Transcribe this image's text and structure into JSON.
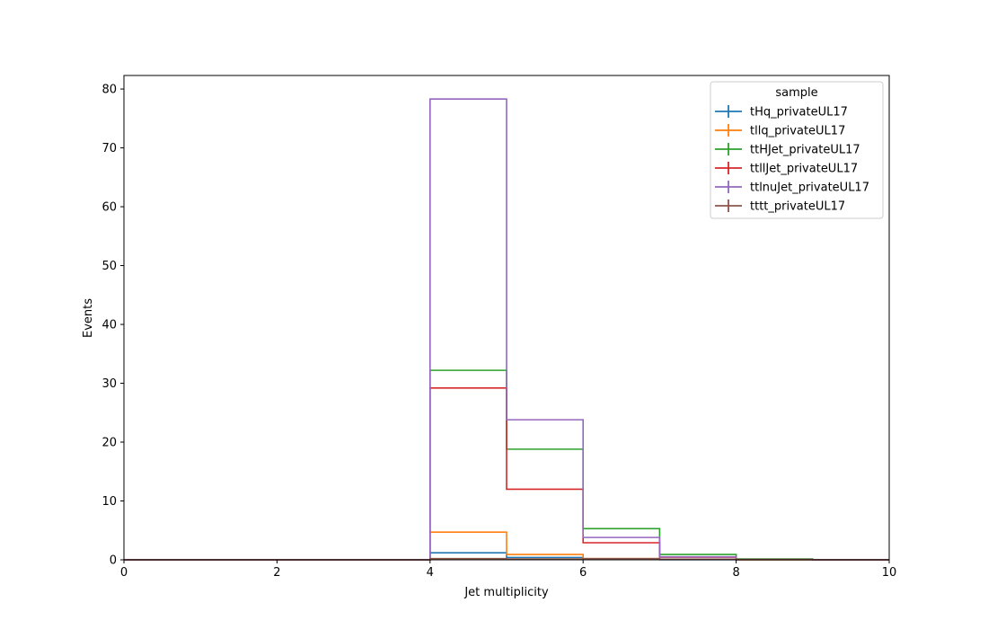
{
  "chart_data": {
    "type": "step-histogram",
    "xlabel": "Jet multiplicity",
    "ylabel": "Events",
    "xlim": [
      0,
      10
    ],
    "ylim": [
      0,
      82.3
    ],
    "xticks": [
      "0",
      "2",
      "4",
      "6",
      "8",
      "10"
    ],
    "yticks": [
      "0",
      "10",
      "20",
      "30",
      "40",
      "50",
      "60",
      "70",
      "80"
    ],
    "grid": false,
    "legend": {
      "title": "sample",
      "placement": "upper right"
    },
    "bin_edges": [
      0,
      1,
      2,
      3,
      4,
      5,
      6,
      7,
      8,
      9,
      10
    ],
    "series": [
      {
        "name": "tHq_privateUL17",
        "color": "#1f77b4",
        "values": [
          0,
          0,
          0,
          0,
          1.2,
          0.4,
          0.1,
          0.02,
          0,
          0
        ]
      },
      {
        "name": "tllq_privateUL17",
        "color": "#ff7f0e",
        "values": [
          0,
          0,
          0,
          0,
          4.7,
          0.9,
          0.2,
          0.05,
          0,
          0
        ]
      },
      {
        "name": "ttHJet_privateUL17",
        "color": "#2ca02c",
        "values": [
          0,
          0,
          0,
          0,
          32.2,
          18.8,
          5.3,
          0.9,
          0.15,
          0
        ]
      },
      {
        "name": "ttllJet_privateUL17",
        "color": "#d62728",
        "values": [
          0,
          0,
          0,
          0,
          29.2,
          12.0,
          2.9,
          0.45,
          0.05,
          0
        ]
      },
      {
        "name": "ttlnuJet_privateUL17",
        "color": "#9467bd",
        "values": [
          0,
          0,
          0,
          0,
          78.3,
          23.8,
          3.8,
          0.5,
          0.05,
          0
        ]
      },
      {
        "name": "tttt_privateUL17",
        "color": "#8c564b",
        "values": [
          0,
          0,
          0,
          0,
          0.2,
          0.15,
          0.2,
          0.1,
          0.03,
          0
        ]
      }
    ]
  }
}
